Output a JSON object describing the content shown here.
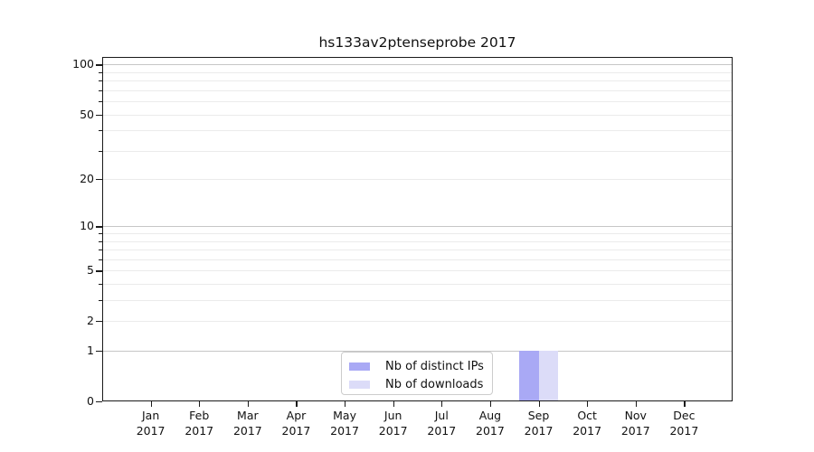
{
  "page": {
    "background": "#ffffff"
  },
  "chart_data": {
    "type": "bar",
    "title": "hs133av2ptenseprobe 2017",
    "categories": [
      "Jan",
      "Feb",
      "Mar",
      "Apr",
      "May",
      "Jun",
      "Jul",
      "Aug",
      "Sep",
      "Oct",
      "Nov",
      "Dec"
    ],
    "category_year": "2017",
    "series": [
      {
        "name": "Nb of distinct IPs",
        "color": "#a9a9f5",
        "values": [
          0,
          0,
          0,
          0,
          0,
          0,
          0,
          0,
          1,
          0,
          0,
          0
        ]
      },
      {
        "name": "Nb of downloads",
        "color": "#dcdcf8",
        "values": [
          0,
          0,
          0,
          0,
          0,
          0,
          0,
          0,
          1,
          0,
          0,
          0
        ]
      }
    ],
    "yscale": "log1p",
    "ylim": [
      0,
      110
    ],
    "y_major_ticks": [
      0,
      1,
      2,
      5,
      10,
      20,
      50,
      100
    ],
    "y_minor_ticks": [
      3,
      4,
      6,
      7,
      8,
      9,
      30,
      40,
      60,
      70,
      80,
      90
    ],
    "grid": "horizontal",
    "legend_position": "lower-center"
  },
  "colors": {
    "axis": "#1a1a1a",
    "text": "#111111",
    "grid_decade": "#c6c6c6",
    "grid_minor": "#ebebeb",
    "legend_border": "#cccccc"
  }
}
